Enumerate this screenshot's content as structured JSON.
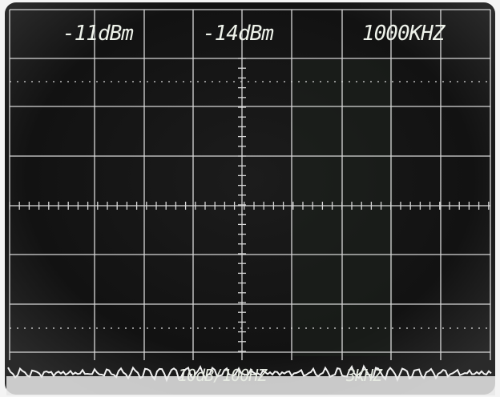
{
  "readouts": [
    "-11dBm",
    "-14dBm",
    "1000KHZ"
  ],
  "footer": [
    "10dB/100HZ",
    "3KHZ"
  ]
}
